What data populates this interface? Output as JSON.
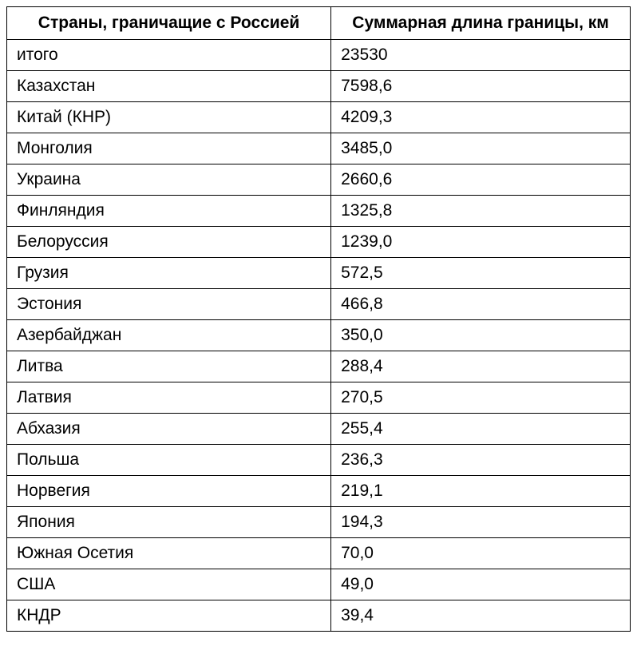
{
  "table": {
    "columns": [
      "Страны, граничащие с Россией",
      "Суммарная длина границы, км"
    ],
    "rows": [
      [
        "итого",
        "23530"
      ],
      [
        "Казахстан",
        "7598,6"
      ],
      [
        "Китай (КНР)",
        "4209,3"
      ],
      [
        "Монголия",
        "3485,0"
      ],
      [
        "Украина",
        "2660,6"
      ],
      [
        "Финляндия",
        "1325,8"
      ],
      [
        "Белоруссия",
        "1239,0"
      ],
      [
        "Грузия",
        "572,5"
      ],
      [
        "Эстония",
        "466,8"
      ],
      [
        "Азербайджан",
        "350,0"
      ],
      [
        "Литва",
        "288,4"
      ],
      [
        "Латвия",
        "270,5"
      ],
      [
        "Абхазия",
        "255,4"
      ],
      [
        "Польша",
        "236,3"
      ],
      [
        "Норвегия",
        "219,1"
      ],
      [
        "Япония",
        "194,3"
      ],
      [
        "Южная Осетия",
        "70,0"
      ],
      [
        "США",
        "49,0"
      ],
      [
        "КНДР",
        "39,4"
      ]
    ],
    "border_color": "#000000",
    "background_color": "#ffffff",
    "text_color": "#000000",
    "header_fontsize": 21,
    "cell_fontsize": 21,
    "header_fontweight": "bold",
    "col_widths": [
      "52%",
      "48%"
    ]
  }
}
